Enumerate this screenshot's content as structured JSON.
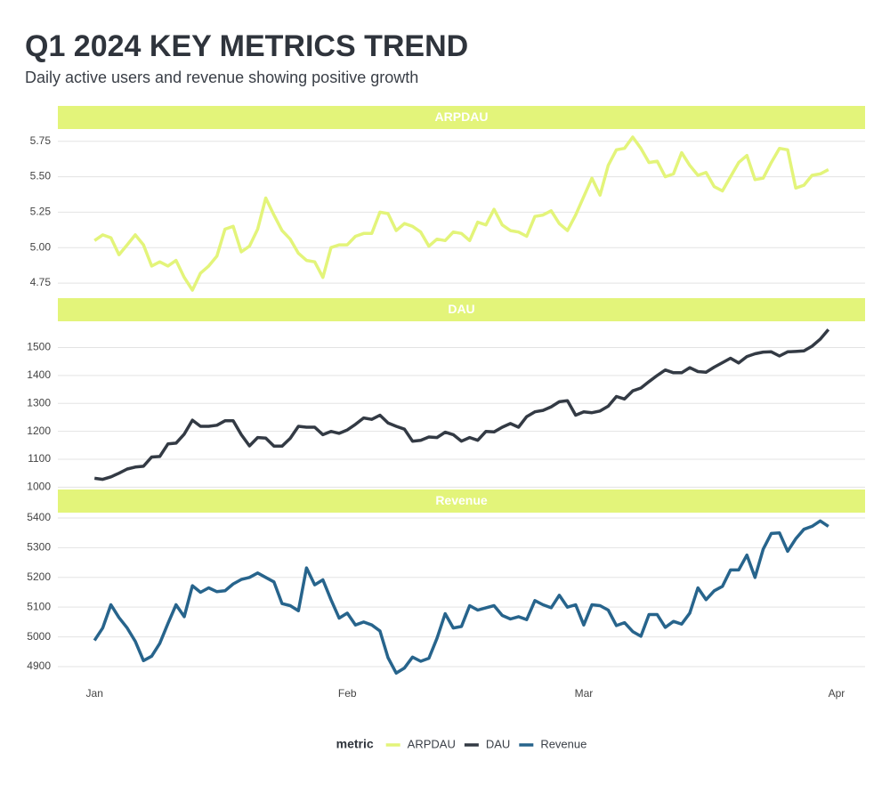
{
  "chart_data": {
    "type": "line",
    "title": "Q1 2024 KEY METRICS TREND",
    "subtitle": "Daily active users and revenue showing positive growth",
    "legend_title": "metric",
    "legend_position": "bottom",
    "grid": true,
    "strip_color": "#e3f47a",
    "x": [
      0,
      1,
      2,
      3,
      4,
      5,
      6,
      7,
      8,
      9,
      10,
      11,
      12,
      13,
      14,
      15,
      16,
      17,
      18,
      19,
      20,
      21,
      22,
      23,
      24,
      25,
      26,
      27,
      28,
      29,
      30,
      31,
      32,
      33,
      34,
      35,
      36,
      37,
      38,
      39,
      40,
      41,
      42,
      43,
      44,
      45,
      46,
      47,
      48,
      49,
      50,
      51,
      52,
      53,
      54,
      55,
      56,
      57,
      58,
      59,
      60,
      61,
      62,
      63,
      64,
      65,
      66,
      67,
      68,
      69,
      70,
      71,
      72,
      73,
      74,
      75,
      76,
      77,
      78,
      79,
      80,
      81,
      82,
      83,
      84,
      85,
      86,
      87,
      88,
      89,
      90
    ],
    "xlim": [
      -4.5,
      94.5
    ],
    "xticks": [
      {
        "value": 0,
        "label": "Jan"
      },
      {
        "value": 31,
        "label": "Feb"
      },
      {
        "value": 60,
        "label": "Mar"
      },
      {
        "value": 91,
        "label": "Apr"
      }
    ],
    "series": [
      {
        "name": "ARPDAU",
        "color": "#e3f47a",
        "ylim": [
          4.65,
          5.83
        ],
        "yticks": [
          4.75,
          {
            "value": 5,
            "label": "5.00"
          },
          5.25,
          {
            "value": 5.5,
            "label": "5.50"
          },
          5.75
        ],
        "values": [
          5.05,
          5.09,
          5.07,
          4.95,
          5.02,
          5.09,
          5.02,
          4.87,
          4.9,
          4.87,
          4.91,
          4.79,
          4.7,
          4.82,
          4.87,
          4.94,
          5.13,
          5.15,
          4.97,
          5.01,
          5.13,
          5.35,
          5.23,
          5.12,
          5.06,
          4.96,
          4.91,
          4.9,
          4.79,
          5.0,
          5.02,
          5.02,
          5.08,
          5.1,
          5.1,
          5.25,
          5.24,
          5.12,
          5.17,
          5.15,
          5.11,
          5.01,
          5.06,
          5.05,
          5.11,
          5.1,
          5.05,
          5.18,
          5.16,
          5.27,
          5.16,
          5.12,
          5.11,
          5.08,
          5.22,
          5.23,
          5.26,
          5.17,
          5.12,
          5.23,
          5.36,
          5.49,
          5.37,
          5.58,
          5.69,
          5.7,
          5.78,
          5.7,
          5.6,
          5.61,
          5.5,
          5.52,
          5.67,
          5.58,
          5.51,
          5.53,
          5.43,
          5.4,
          5.5,
          5.6,
          5.65,
          5.48,
          5.49,
          5.6,
          5.7,
          5.69,
          5.42,
          5.44,
          5.51,
          5.52,
          5.55
        ]
      },
      {
        "name": "DAU",
        "color": "#333a44",
        "ylim": [
          995,
          1591
        ],
        "yticks": [
          1000,
          1100,
          1200,
          1300,
          1400,
          1500
        ],
        "values": [
          1032,
          1028,
          1037,
          1050,
          1065,
          1072,
          1075,
          1108,
          1110,
          1155,
          1158,
          1190,
          1240,
          1218,
          1218,
          1222,
          1238,
          1238,
          1188,
          1148,
          1178,
          1176,
          1147,
          1147,
          1175,
          1218,
          1215,
          1215,
          1188,
          1200,
          1193,
          1205,
          1225,
          1248,
          1243,
          1258,
          1230,
          1218,
          1208,
          1165,
          1168,
          1180,
          1178,
          1197,
          1188,
          1165,
          1178,
          1168,
          1200,
          1198,
          1215,
          1228,
          1215,
          1253,
          1270,
          1275,
          1288,
          1306,
          1310,
          1258,
          1270,
          1267,
          1273,
          1290,
          1325,
          1316,
          1345,
          1355,
          1378,
          1400,
          1420,
          1410,
          1410,
          1428,
          1414,
          1412,
          1430,
          1446,
          1462,
          1445,
          1468,
          1478,
          1484,
          1485,
          1470,
          1485,
          1486,
          1488,
          1505,
          1530,
          1565
        ]
      },
      {
        "name": "Revenue",
        "color": "#27648c",
        "ylim": [
          4852,
          5415
        ],
        "yticks": [
          4900,
          5000,
          5100,
          5200,
          5300,
          5400
        ],
        "values": [
          4988,
          5030,
          5108,
          5065,
          5030,
          4985,
          4920,
          4935,
          4978,
          5045,
          5108,
          5068,
          5172,
          5150,
          5165,
          5152,
          5155,
          5178,
          5193,
          5200,
          5215,
          5200,
          5185,
          5112,
          5105,
          5088,
          5232,
          5175,
          5192,
          5125,
          5063,
          5080,
          5040,
          5050,
          5040,
          5020,
          4930,
          4878,
          4895,
          4932,
          4918,
          4928,
          4995,
          5078,
          5030,
          5035,
          5105,
          5090,
          5098,
          5105,
          5072,
          5060,
          5068,
          5058,
          5122,
          5108,
          5098,
          5140,
          5100,
          5108,
          5040,
          5108,
          5105,
          5090,
          5038,
          5048,
          5018,
          5002,
          5075,
          5075,
          5032,
          5052,
          5043,
          5080,
          5165,
          5125,
          5155,
          5170,
          5225,
          5225,
          5275,
          5200,
          5295,
          5348,
          5350,
          5288,
          5330,
          5362,
          5372,
          5390,
          5372
        ]
      }
    ]
  }
}
